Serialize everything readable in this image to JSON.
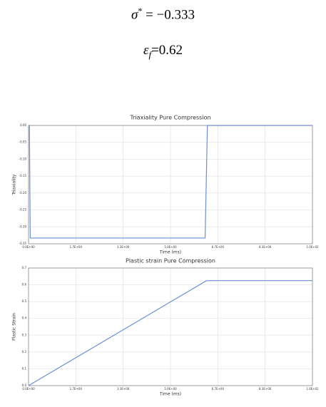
{
  "equations": [
    {
      "symbol": "σ",
      "sup": "*",
      "text": " = −0.333"
    },
    {
      "symbol": "ε",
      "sub": "f",
      "text": "=0.62"
    }
  ],
  "chart_data": [
    {
      "type": "line",
      "title": "Triaxiality Pure Compression",
      "xlabel": "Time (ms)",
      "ylabel": "Triaxiality",
      "x": [
        0,
        0.03,
        0.06,
        6.22,
        6.3,
        10
      ],
      "values": [
        0,
        0,
        -0.333,
        -0.333,
        0,
        0
      ],
      "color": "#6b8fd6",
      "xlim": [
        0,
        10
      ],
      "xticks": [
        {
          "value": 0,
          "label": "0.0E+00"
        },
        {
          "value": 1.667,
          "label": "1.7E+00"
        },
        {
          "value": 3.333,
          "label": "3.3E+00"
        },
        {
          "value": 5,
          "label": "5.0E+00"
        },
        {
          "value": 6.667,
          "label": "6.7E+00"
        },
        {
          "value": 8.333,
          "label": "8.3E+00"
        },
        {
          "value": 10,
          "label": "1.0E+01"
        }
      ],
      "ylim": [
        -0.35,
        0
      ],
      "yticks": [
        {
          "value": 0,
          "label": "0.00"
        },
        -0.05,
        {
          "value": -0.1,
          "label": "-0.10"
        },
        -0.15,
        {
          "value": -0.2,
          "label": "-0.20"
        },
        -0.25,
        {
          "value": -0.3,
          "label": "-0.30"
        },
        -0.35
      ],
      "grid": true
    },
    {
      "type": "line",
      "title": "Plastic strain Pure Compression",
      "xlabel": "Time (ms)",
      "ylabel": "Plastic Strain",
      "x": [
        0,
        6.27,
        10
      ],
      "values": [
        0,
        0.625,
        0.625
      ],
      "color": "#6b8fd6",
      "xlim": [
        0,
        10
      ],
      "xticks": [
        {
          "value": 0,
          "label": "0.0E+00"
        },
        {
          "value": 1.667,
          "label": "1.7E+00"
        },
        {
          "value": 3.333,
          "label": "3.3E+00"
        },
        {
          "value": 5,
          "label": "5.0E+00"
        },
        {
          "value": 6.667,
          "label": "6.7E+00"
        },
        {
          "value": 8.333,
          "label": "8.3E+00"
        },
        {
          "value": 10,
          "label": "1.0E+01"
        }
      ],
      "ylim": [
        0,
        0.7
      ],
      "yticks": [
        {
          "value": 0,
          "label": "0.0"
        },
        0.1,
        0.2,
        0.3,
        0.4,
        0.5,
        0.6,
        0.7
      ],
      "grid": true
    }
  ]
}
